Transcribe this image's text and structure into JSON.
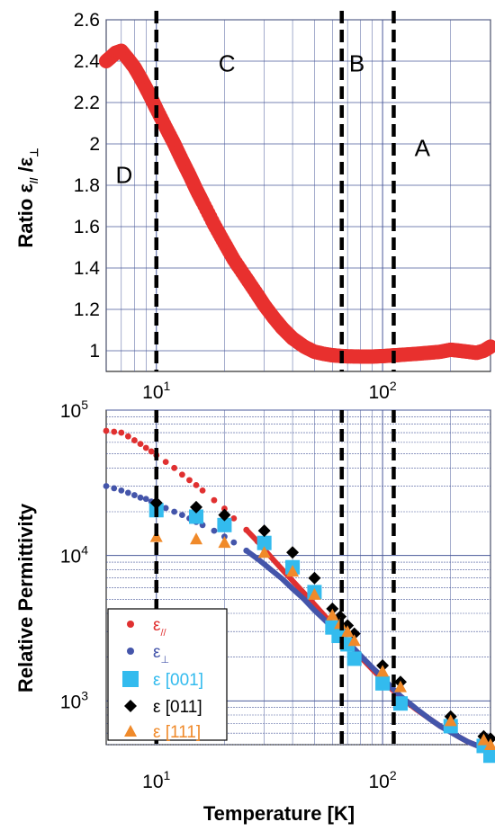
{
  "chart_data": [
    {
      "type": "scatter",
      "ylabel": "Ratio ε// /ε⊥",
      "ylabel_parts": [
        "Ratio ε",
        "//",
        " /ε",
        "⊥"
      ],
      "xscale": "log",
      "xlim": [
        6,
        300
      ],
      "ylim": [
        0.9,
        2.6
      ],
      "yticks": [
        "1",
        "1.2",
        "1.4",
        "1.6",
        "1.8",
        "2",
        "2.2",
        "2.4",
        "2.6"
      ],
      "xticks": [
        {
          "base": "10",
          "exp": "1"
        },
        {
          "base": "10",
          "exp": "2"
        }
      ],
      "grid": true,
      "region_labels": [
        {
          "text": "D",
          "x": 7.2,
          "y": 1.85
        },
        {
          "text": "C",
          "x": 20.5,
          "y": 2.39
        },
        {
          "text": "B",
          "x": 77,
          "y": 2.39
        },
        {
          "text": "A",
          "x": 150,
          "y": 1.98
        }
      ],
      "vlines": [
        10,
        66,
        112
      ],
      "series": [
        {
          "color": "#e8302e",
          "x": [
            6,
            6.3,
            6.6,
            7,
            7.5,
            8,
            8.5,
            9,
            9.5,
            10,
            11,
            12,
            13,
            14,
            15,
            16,
            18,
            20,
            22,
            25,
            28,
            30,
            33,
            36,
            40,
            45,
            50,
            55,
            60,
            65,
            70,
            80,
            90,
            100,
            110,
            120,
            140,
            160,
            180,
            200,
            220,
            240,
            260,
            280,
            300
          ],
          "y": [
            2.4,
            2.42,
            2.44,
            2.45,
            2.41,
            2.37,
            2.32,
            2.27,
            2.22,
            2.17,
            2.08,
            2.0,
            1.92,
            1.85,
            1.78,
            1.72,
            1.61,
            1.52,
            1.44,
            1.35,
            1.27,
            1.22,
            1.16,
            1.11,
            1.06,
            1.02,
            0.995,
            0.985,
            0.978,
            0.975,
            0.973,
            0.972,
            0.972,
            0.974,
            0.977,
            0.98,
            0.985,
            0.99,
            0.995,
            1.005,
            1.0,
            0.995,
            0.99,
            1.0,
            1.02
          ]
        }
      ]
    },
    {
      "type": "scatter",
      "ylabel": "Relative Permittivity",
      "xlabel": "Temperature [K]",
      "xscale": "log",
      "yscale": "log",
      "xlim": [
        6,
        300
      ],
      "ylim": [
        500,
        100000
      ],
      "yticks": [
        {
          "base": "10",
          "exp": "3"
        },
        {
          "base": "10",
          "exp": "4"
        },
        {
          "base": "10",
          "exp": "5"
        }
      ],
      "xticks": [
        {
          "base": "10",
          "exp": "1"
        },
        {
          "base": "10",
          "exp": "2"
        }
      ],
      "grid": true,
      "vlines": [
        10,
        66,
        112
      ],
      "legend_position": "bottom-left",
      "series": [
        {
          "legend": {
            "text": "ε",
            "sub": "//"
          },
          "color": "#e03030",
          "marker": "dot",
          "x": [
            6,
            6.5,
            7,
            7.5,
            8,
            8.5,
            9,
            9.5,
            10,
            11,
            12,
            13,
            14,
            15,
            16,
            18,
            20,
            22,
            25,
            28,
            30,
            33,
            36,
            40,
            45,
            50,
            55,
            60,
            65,
            70,
            80,
            90,
            100,
            110,
            120,
            140,
            160,
            180,
            200,
            220,
            240,
            260,
            280,
            300
          ],
          "y": [
            72000,
            71000,
            70000,
            66000,
            62000,
            58500,
            55000,
            52000,
            49000,
            44000,
            40000,
            36000,
            33000,
            30500,
            28000,
            24000,
            21000,
            18000,
            15000,
            12500,
            11000,
            9300,
            8000,
            6700,
            5500,
            4600,
            3900,
            3350,
            2900,
            2550,
            2000,
            1650,
            1400,
            1200,
            1060,
            880,
            760,
            670,
            610,
            560,
            520,
            495,
            470,
            450
          ]
        },
        {
          "legend": {
            "text": "ε",
            "sub": "⊥"
          },
          "color": "#4455aa",
          "marker": "dot",
          "x": [
            6,
            6.5,
            7,
            7.5,
            8,
            8.5,
            9,
            9.5,
            10,
            11,
            12,
            13,
            14,
            15,
            16,
            18,
            20,
            22,
            25,
            28,
            30,
            33,
            36,
            40,
            45,
            50,
            55,
            60,
            65,
            70,
            80,
            90,
            100,
            110,
            120,
            140,
            160,
            180,
            200,
            220,
            240,
            260,
            280,
            300
          ],
          "y": [
            30000,
            29000,
            28000,
            27000,
            26000,
            25000,
            24500,
            23500,
            22500,
            21200,
            20000,
            19000,
            18000,
            17000,
            16200,
            14800,
            13500,
            12300,
            10800,
            9500,
            8700,
            7700,
            6900,
            5900,
            5000,
            4200,
            3650,
            3200,
            2850,
            2550,
            2050,
            1700,
            1450,
            1230,
            1080,
            890,
            760,
            670,
            610,
            560,
            520,
            495,
            470,
            450
          ]
        },
        {
          "legend": {
            "text": "ε [001]"
          },
          "color": "#33bbee",
          "marker": "square",
          "x": [
            10,
            15,
            20,
            30,
            40,
            50,
            60,
            64,
            70,
            75,
            100,
            120,
            200,
            280,
            300
          ],
          "y": [
            20500,
            18500,
            16200,
            12200,
            8300,
            5600,
            3200,
            2800,
            2450,
            1950,
            1320,
            960,
            670,
            490,
            420
          ]
        },
        {
          "legend": {
            "text": "ε [011]"
          },
          "color": "#000000",
          "marker": "diamond",
          "x": [
            10,
            15,
            20,
            30,
            40,
            50,
            60,
            65,
            70,
            75,
            100,
            120,
            200,
            280,
            300
          ],
          "y": [
            23000,
            21500,
            19000,
            14800,
            10500,
            7000,
            4300,
            3800,
            3300,
            2900,
            1750,
            1350,
            780,
            570,
            550
          ]
        },
        {
          "legend": {
            "text": "ε [111]"
          },
          "color": "#f08a2a",
          "marker": "triangle",
          "x": [
            10,
            15,
            20,
            30,
            40,
            50,
            60,
            65,
            70,
            75,
            100,
            120,
            200,
            280,
            300
          ],
          "y": [
            13500,
            13000,
            12300,
            10500,
            7800,
            5400,
            3900,
            3400,
            3000,
            2600,
            1600,
            1250,
            730,
            540,
            500
          ]
        }
      ]
    }
  ]
}
